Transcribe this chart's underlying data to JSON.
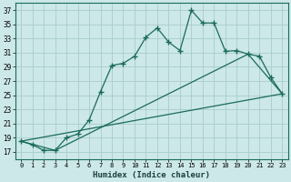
{
  "xlabel": "Humidex (Indice chaleur)",
  "bg_color": "#cce8e8",
  "grid_color": "#aacccc",
  "line_color": "#1a6b5a",
  "xlim": [
    -0.5,
    23.5
  ],
  "ylim": [
    16,
    38
  ],
  "yticks": [
    17,
    19,
    21,
    23,
    25,
    27,
    29,
    31,
    33,
    35,
    37
  ],
  "xticks": [
    0,
    1,
    2,
    3,
    4,
    5,
    6,
    7,
    8,
    9,
    10,
    11,
    12,
    13,
    14,
    15,
    16,
    17,
    18,
    19,
    20,
    21,
    22,
    23
  ],
  "series1_x": [
    0,
    1,
    2,
    3,
    4,
    5,
    6,
    7,
    8,
    9,
    10,
    11,
    12,
    13,
    14,
    15,
    16,
    17,
    18,
    19,
    20,
    21,
    22,
    23
  ],
  "series1_y": [
    18.5,
    18.0,
    17.2,
    17.2,
    19.0,
    19.5,
    21.5,
    25.5,
    29.2,
    29.5,
    30.5,
    33.2,
    34.5,
    32.5,
    31.3,
    37.0,
    35.2,
    35.2,
    31.2,
    31.3,
    30.8,
    30.5,
    27.5,
    25.2
  ],
  "series2_x": [
    0,
    3,
    20,
    23
  ],
  "series2_y": [
    18.5,
    17.2,
    30.8,
    25.2
  ],
  "series3_x": [
    0,
    23
  ],
  "series3_y": [
    18.5,
    25.2
  ]
}
